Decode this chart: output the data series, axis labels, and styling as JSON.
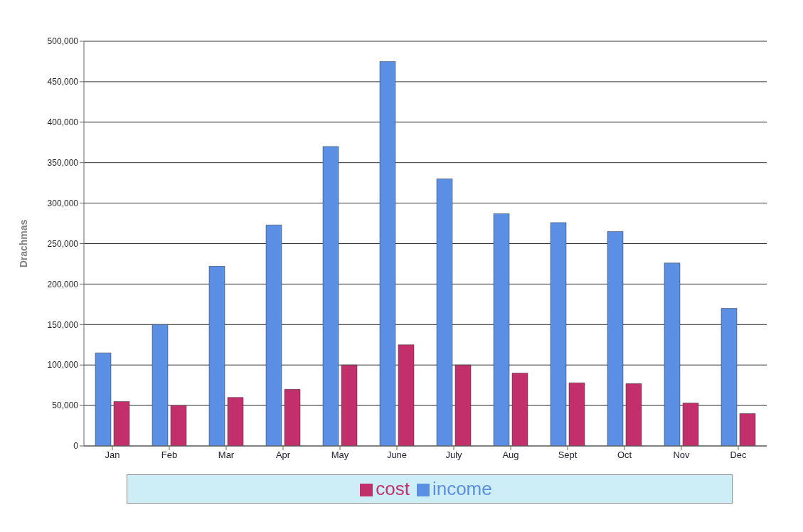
{
  "chart_data": {
    "type": "bar",
    "ylabel": "Drachmas",
    "categories": [
      "Jan",
      "Feb",
      "Mar",
      "Apr",
      "May",
      "June",
      "July",
      "Aug",
      "Sept",
      "Oct",
      "Nov",
      "Dec"
    ],
    "series": [
      {
        "name": "income",
        "color": "#5b8fe3",
        "values": [
          115000,
          150000,
          222000,
          273000,
          370000,
          475000,
          330000,
          287000,
          276000,
          265000,
          226000,
          170000
        ]
      },
      {
        "name": "cost",
        "color": "#c2306c",
        "values": [
          55000,
          50000,
          60000,
          70000,
          100000,
          125000,
          100000,
          90000,
          78000,
          77000,
          53000,
          40000
        ]
      }
    ],
    "ylim": [
      0,
      500000
    ],
    "yticks": [
      0,
      {
        "value": 50000,
        "label": "50,000"
      },
      {
        "value": 100000,
        "label": "100,000"
      },
      {
        "value": 150000,
        "label": "150,000"
      },
      {
        "value": 200000,
        "label": "200,000"
      },
      {
        "value": 250000,
        "label": "250,000"
      },
      {
        "value": 300000,
        "label": "300,000"
      },
      {
        "value": 350000,
        "label": "350,000"
      },
      {
        "value": 400000,
        "label": "400,000"
      },
      {
        "value": 450000,
        "label": "450,000"
      },
      {
        "value": 500000,
        "label": "500,000"
      }
    ],
    "grid": "y",
    "legend": "bottom"
  }
}
